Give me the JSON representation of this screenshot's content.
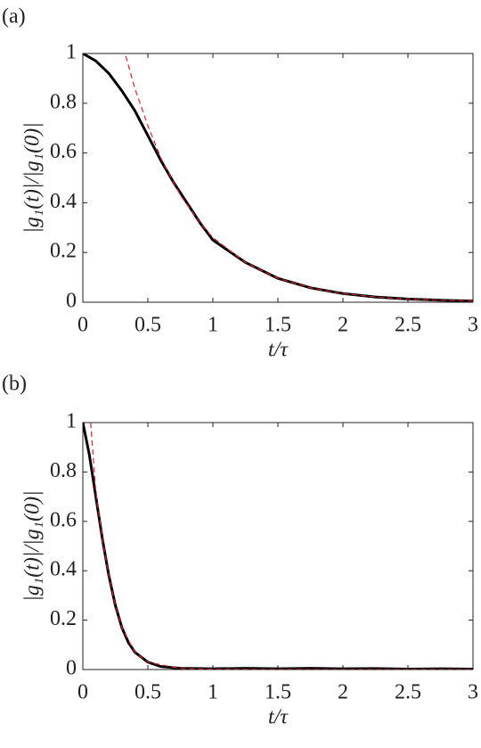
{
  "chart_data": [
    {
      "type": "line",
      "panel_label": "(a)",
      "xlabel": "t/τ",
      "ylabel": "|g₁(t)|/|g₁(0)|",
      "xlim": [
        0,
        3
      ],
      "ylim": [
        0,
        1
      ],
      "xticks": [
        0,
        0.5,
        1,
        1.5,
        2,
        2.5,
        3
      ],
      "yticks": [
        0,
        0.2,
        0.4,
        0.6,
        0.8,
        1
      ],
      "series": [
        {
          "color": "#000000",
          "line_style": "solid",
          "x": [
            0,
            0.1,
            0.2,
            0.3,
            0.4,
            0.5,
            0.6,
            0.7,
            0.8,
            0.9,
            1,
            1.25,
            1.5,
            1.75,
            2,
            2.25,
            2.5,
            2.75,
            3
          ],
          "values": [
            1,
            0.97,
            0.92,
            0.85,
            0.77,
            0.67,
            0.57,
            0.48,
            0.4,
            0.32,
            0.25,
            0.16,
            0.096,
            0.058,
            0.035,
            0.021,
            0.013,
            0.008,
            0.005
          ]
        },
        {
          "color": "#e0202a",
          "line_style": "dashed",
          "x": [
            0.33,
            0.4,
            0.5,
            0.6,
            0.75,
            0.9,
            1,
            1.25,
            1.5,
            1.75,
            2,
            2.25,
            2.5,
            2.75,
            3
          ],
          "values": [
            0.99,
            0.86,
            0.71,
            0.58,
            0.43,
            0.32,
            0.26,
            0.16,
            0.096,
            0.058,
            0.035,
            0.021,
            0.013,
            0.008,
            0.005
          ]
        }
      ]
    },
    {
      "type": "line",
      "panel_label": "(b)",
      "xlabel": "t/τ",
      "ylabel": "|g₁(t)|/|g₁(0)|",
      "xlim": [
        0,
        3
      ],
      "ylim": [
        0,
        1
      ],
      "xticks": [
        0,
        0.5,
        1,
        1.5,
        2,
        2.5,
        3
      ],
      "yticks": [
        0,
        0.2,
        0.4,
        0.6,
        0.8,
        1
      ],
      "series": [
        {
          "color": "#000000",
          "line_style": "solid",
          "x": [
            0,
            0.05,
            0.1,
            0.15,
            0.2,
            0.25,
            0.3,
            0.35,
            0.4,
            0.5,
            0.6,
            0.75,
            1,
            1.25,
            1.5,
            1.75,
            2,
            2.25,
            2.5,
            2.75,
            3
          ],
          "values": [
            1,
            0.87,
            0.7,
            0.53,
            0.38,
            0.26,
            0.17,
            0.11,
            0.07,
            0.03,
            0.012,
            0.005,
            0.003,
            0.005,
            0.003,
            0.005,
            0.003,
            0.004,
            0.002,
            0.003,
            0.002
          ]
        },
        {
          "color": "#e0202a",
          "line_style": "dashed",
          "x": [
            0.06,
            0.1,
            0.15,
            0.2,
            0.25,
            0.3,
            0.4,
            0.5,
            0.75,
            1,
            2,
            3
          ],
          "values": [
            1,
            0.72,
            0.53,
            0.38,
            0.26,
            0.17,
            0.07,
            0.03,
            0.004,
            0.001,
            0,
            0
          ]
        }
      ]
    }
  ]
}
